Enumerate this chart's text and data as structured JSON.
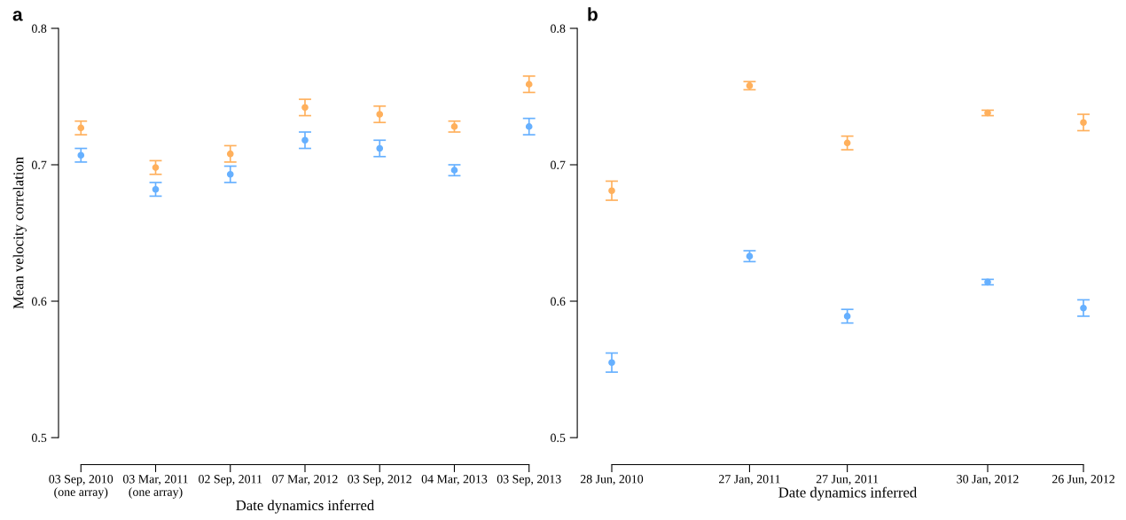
{
  "chart_data": [
    {
      "type": "scatter",
      "title": "a",
      "xlabel": "Date dynamics inferred",
      "ylabel": "Mean velocity correlation",
      "categories": [
        "03 Sep, 2010\n(one array)",
        "03 Mar, 2011\n(one array)",
        "02 Sep, 2011",
        "07 Mar, 2012",
        "03 Sep, 2012",
        "04 Mar, 2013",
        "03 Sep, 2013"
      ],
      "series": [
        {
          "color": "#ffb05c",
          "values": [
            0.727,
            0.698,
            0.708,
            0.742,
            0.737,
            0.728,
            0.759
          ],
          "errors": [
            0.005,
            0.005,
            0.006,
            0.006,
            0.006,
            0.004,
            0.006
          ]
        },
        {
          "color": "#66b0ff",
          "values": [
            0.707,
            0.682,
            0.693,
            0.718,
            0.712,
            0.696,
            0.728
          ],
          "errors": [
            0.005,
            0.005,
            0.006,
            0.006,
            0.006,
            0.004,
            0.006
          ]
        }
      ],
      "ylim": [
        0.5,
        0.8
      ],
      "yticks": [
        0.5,
        0.6,
        0.7,
        0.8
      ],
      "marker": "circle",
      "grid": false
    },
    {
      "type": "scatter",
      "title": "b",
      "xlabel": "Date dynamics inferred",
      "x": [
        "2010-06-28",
        "2011-01-27",
        "2011-06-27",
        "2012-01-30",
        "2012-06-26"
      ],
      "series": [
        {
          "color": "#ffb05c",
          "values": [
            0.681,
            0.758,
            0.716,
            0.738,
            0.731
          ],
          "errors": [
            0.007,
            0.003,
            0.005,
            0.002,
            0.006
          ]
        },
        {
          "color": "#66b0ff",
          "values": [
            0.555,
            0.633,
            0.589,
            0.614,
            0.595
          ],
          "errors": [
            0.007,
            0.004,
            0.005,
            0.002,
            0.006
          ]
        }
      ],
      "xlim": [
        "2010-06-28",
        "2012-06-26"
      ],
      "xticks": [
        {
          "value": "2010-06-28",
          "label": "28 Jun, 2010"
        },
        {
          "value": "2011-01-27",
          "label": "27 Jan, 2011"
        },
        {
          "value": "2011-06-27",
          "label": "27 Jun, 2011"
        },
        {
          "value": "2012-01-30",
          "label": "30 Jan, 2012"
        },
        {
          "value": "2012-06-26",
          "label": "26 Jun, 2012"
        }
      ],
      "ylim": [
        0.5,
        0.8
      ],
      "yticks": [
        0.5,
        0.6,
        0.7,
        0.8
      ],
      "marker": "circle",
      "grid": false
    }
  ]
}
